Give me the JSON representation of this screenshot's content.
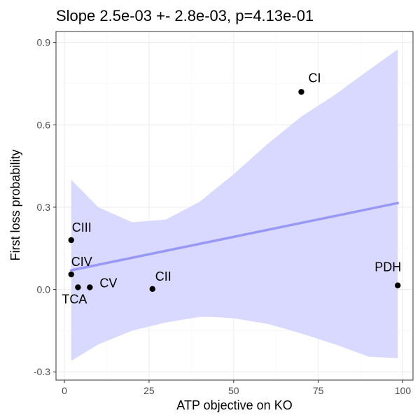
{
  "chart_data": {
    "type": "scatter",
    "title": "Slope 2.5e-03 +- 2.8e-03, p=4.13e-01",
    "xlabel": "ATP objective on KO",
    "ylabel": "First loss probability",
    "xlim": [
      -2.5,
      103
    ],
    "ylim": [
      -0.33,
      0.94
    ],
    "x_ticks": [
      0,
      25,
      50,
      75,
      100
    ],
    "y_ticks": [
      -0.3,
      0.0,
      0.3,
      0.6,
      0.9
    ],
    "x_tick_labels": [
      "0",
      "25",
      "50",
      "75",
      "100"
    ],
    "y_tick_labels": [
      "-0.3",
      "0.0",
      "0.3",
      "0.6",
      "0.9"
    ],
    "grid": true,
    "points": [
      {
        "label": "CI",
        "x": 70.0,
        "y": 0.72
      },
      {
        "label": "CIII",
        "x": 2.0,
        "y": 0.18
      },
      {
        "label": "CIV",
        "x": 2.0,
        "y": 0.055
      },
      {
        "label": "TCA",
        "x": 4.0,
        "y": 0.008
      },
      {
        "label": "CV",
        "x": 7.5,
        "y": 0.008
      },
      {
        "label": "CII",
        "x": 26.0,
        "y": 0.002
      },
      {
        "label": "PDH",
        "x": 98.5,
        "y": 0.015
      }
    ],
    "fit_line": {
      "x": [
        2.0,
        98.5
      ],
      "y": [
        0.07,
        0.315
      ]
    },
    "confidence_band": {
      "x": [
        2,
        10,
        20,
        30,
        40,
        44,
        50,
        60,
        70,
        80,
        90,
        98.5
      ],
      "upper": [
        0.4,
        0.3,
        0.245,
        0.255,
        0.32,
        0.36,
        0.42,
        0.53,
        0.63,
        0.71,
        0.8,
        0.875
      ],
      "lower": [
        -0.26,
        -0.2,
        -0.15,
        -0.12,
        -0.1,
        -0.1,
        -0.105,
        -0.125,
        -0.16,
        -0.2,
        -0.245,
        -0.25
      ]
    },
    "colors": {
      "band": "#d9d9ff",
      "line": "#9999f5",
      "point": "#000000",
      "grid": "#ebebeb",
      "border": "#333333"
    }
  }
}
